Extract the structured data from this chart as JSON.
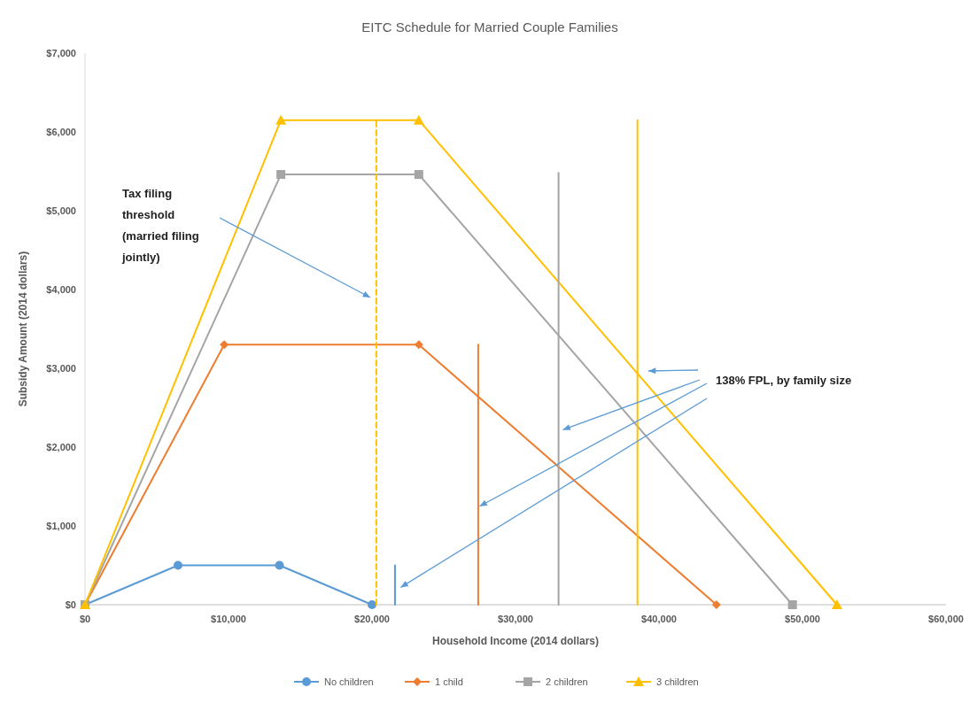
{
  "chart_data": {
    "type": "line",
    "title": "EITC Schedule for Married Couple Families",
    "xlabel": "Household Income (2014 dollars)",
    "ylabel": "Subsidy Amount (2014 dollars)",
    "xlim": [
      0,
      60000
    ],
    "xticks": [
      {
        "value": 0,
        "label": "$0"
      },
      {
        "value": 10000,
        "label": "$10,000"
      },
      {
        "value": 20000,
        "label": "$20,000"
      },
      {
        "value": 30000,
        "label": "$30,000"
      },
      {
        "value": 40000,
        "label": "$40,000"
      },
      {
        "value": 50000,
        "label": "$50,000"
      },
      {
        "value": 60000,
        "label": "$60,000"
      }
    ],
    "ylim": [
      0,
      7000
    ],
    "yticks": [
      {
        "value": 0,
        "label": "$0"
      },
      {
        "value": 1000,
        "label": "$1,000"
      },
      {
        "value": 2000,
        "label": "$2,000"
      },
      {
        "value": 3000,
        "label": "$3,000"
      },
      {
        "value": 4000,
        "label": "$4,000"
      },
      {
        "value": 5000,
        "label": "$5,000"
      },
      {
        "value": 6000,
        "label": "$6,000"
      },
      {
        "value": 7000,
        "label": "$7,000"
      }
    ],
    "grid": false,
    "legend": "bottom",
    "series": [
      {
        "name": "No children",
        "color": "#5b9bd5",
        "marker": "circle",
        "x": [
          0,
          6480,
          13550,
          20000
        ],
        "values": [
          0,
          500,
          500,
          0
        ]
      },
      {
        "name": "1 child",
        "color": "#ed7d31",
        "marker": "diamond",
        "x": [
          0,
          9700,
          23260,
          44000
        ],
        "values": [
          0,
          3300,
          3300,
          0
        ]
      },
      {
        "name": "2 children",
        "color": "#a5a5a5",
        "marker": "square",
        "x": [
          0,
          13650,
          23260,
          49300
        ],
        "values": [
          0,
          5460,
          5460,
          0
        ]
      },
      {
        "name": "3 children",
        "color": "#ffc000",
        "marker": "triangle",
        "x": [
          0,
          13650,
          23260,
          52400
        ],
        "values": [
          0,
          6150,
          6150,
          0
        ]
      },
      {
        "color": "#ffc000",
        "marker": "none",
        "line_style": "dashed",
        "x": [
          20300,
          20300
        ],
        "values": [
          0,
          6150
        ]
      },
      {
        "color": "#5b9bd5",
        "marker": "none",
        "x": [
          21600,
          21600
        ],
        "values": [
          0,
          500
        ]
      },
      {
        "color": "#ed7d31",
        "marker": "none",
        "x": [
          27400,
          27400
        ],
        "values": [
          0,
          3300
        ]
      },
      {
        "color": "#a5a5a5",
        "marker": "none",
        "x": [
          33000,
          33000
        ],
        "values": [
          0,
          5480
        ]
      },
      {
        "color": "#ffc000",
        "marker": "none",
        "x": [
          38500,
          38500
        ],
        "values": [
          0,
          6150
        ]
      }
    ],
    "annotations": [
      "Tax filing threshold (married filing jointly)",
      {
        "text": "138% FPL, by family size",
        "x": 27500,
        "y": 1250
      }
    ]
  }
}
